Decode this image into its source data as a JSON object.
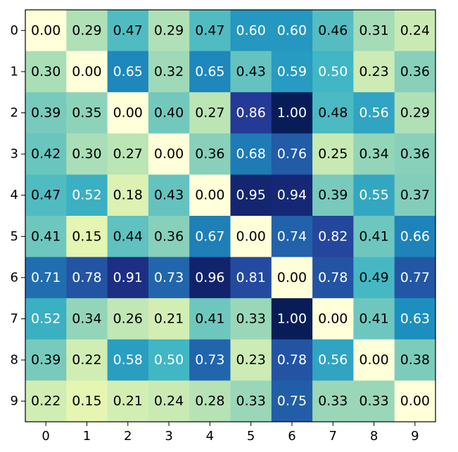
{
  "chart_data": {
    "type": "heatmap",
    "colormap": "YlGnBu",
    "vmin": 0,
    "vmax": 1,
    "x_ticks": [
      "0",
      "1",
      "2",
      "3",
      "4",
      "5",
      "6",
      "7",
      "8",
      "9"
    ],
    "y_ticks": [
      "0",
      "1",
      "2",
      "3",
      "4",
      "5",
      "6",
      "7",
      "8",
      "9"
    ],
    "values": [
      [
        0.0,
        0.29,
        0.47,
        0.29,
        0.47,
        0.6,
        0.6,
        0.46,
        0.31,
        0.24
      ],
      [
        0.3,
        0.0,
        0.65,
        0.32,
        0.65,
        0.43,
        0.59,
        0.5,
        0.23,
        0.36
      ],
      [
        0.39,
        0.35,
        0.0,
        0.4,
        0.27,
        0.86,
        1.0,
        0.48,
        0.56,
        0.29
      ],
      [
        0.42,
        0.3,
        0.27,
        0.0,
        0.36,
        0.68,
        0.76,
        0.25,
        0.34,
        0.36
      ],
      [
        0.47,
        0.52,
        0.18,
        0.43,
        0.0,
        0.95,
        0.94,
        0.39,
        0.55,
        0.37
      ],
      [
        0.41,
        0.15,
        0.44,
        0.36,
        0.67,
        0.0,
        0.74,
        0.82,
        0.41,
        0.66
      ],
      [
        0.71,
        0.78,
        0.91,
        0.73,
        0.96,
        0.81,
        0.0,
        0.78,
        0.49,
        0.77
      ],
      [
        0.52,
        0.34,
        0.26,
        0.21,
        0.41,
        0.33,
        1.0,
        0.0,
        0.41,
        0.63
      ],
      [
        0.39,
        0.22,
        0.58,
        0.5,
        0.73,
        0.23,
        0.78,
        0.56,
        0.0,
        0.38
      ],
      [
        0.22,
        0.15,
        0.21,
        0.24,
        0.28,
        0.33,
        0.75,
        0.33,
        0.33,
        0.0
      ]
    ],
    "value_format": "2 decimals",
    "text_color_dark": "#000000",
    "text_color_light": "#ffffff",
    "title": "",
    "xlabel": "",
    "ylabel": "",
    "grid": false,
    "colorbar": false
  }
}
